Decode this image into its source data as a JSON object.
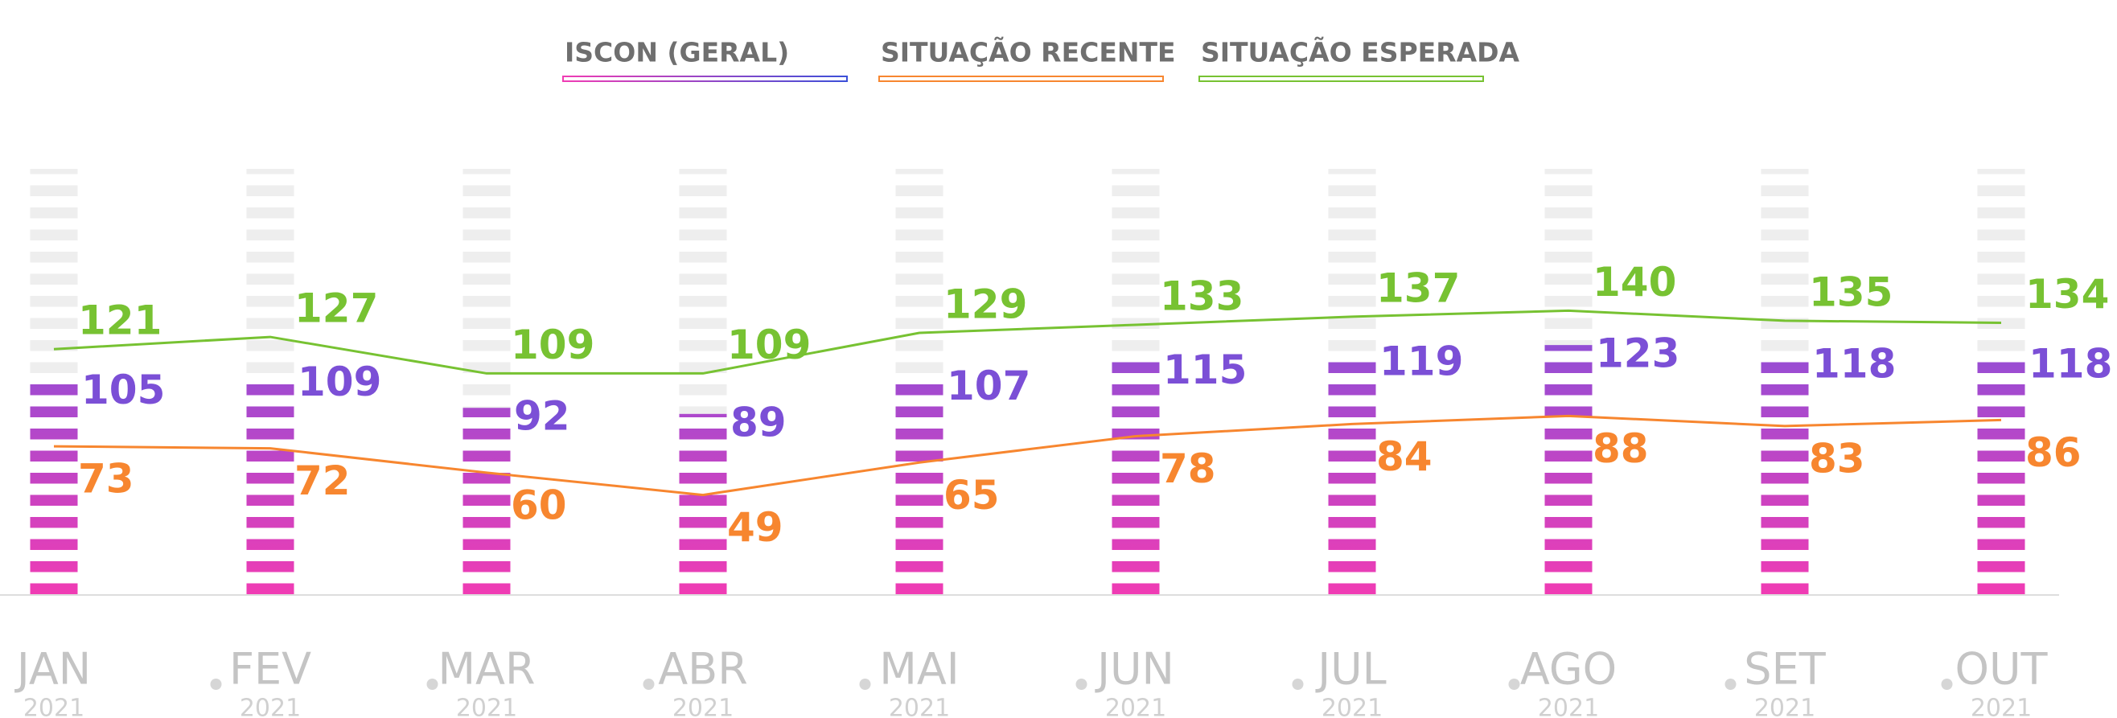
{
  "chart_data": {
    "type": "bar-line",
    "categories": [
      "JAN",
      "FEV",
      "MAR",
      "ABR",
      "MAI",
      "JUN",
      "JUL",
      "AGO",
      "SET",
      "OUT"
    ],
    "years": [
      "2021",
      "2021",
      "2021",
      "2021",
      "2021",
      "2021",
      "2021",
      "2021",
      "2021",
      "2021"
    ],
    "ylim": [
      0,
      210
    ],
    "series": [
      {
        "name": "ISCON (GERAL)",
        "color": "#8a4fd8",
        "type": "bar",
        "values": [
          105,
          109,
          92,
          89,
          107,
          115,
          119,
          123,
          118,
          118
        ]
      },
      {
        "name": "SITUAÇÃO RECENTE",
        "color": "#f7862f",
        "type": "line",
        "values": [
          73,
          72,
          60,
          49,
          65,
          78,
          84,
          88,
          83,
          86
        ]
      },
      {
        "name": "SITUAÇÃO ESPERADA",
        "color": "#77c232",
        "type": "line",
        "values": [
          121,
          127,
          109,
          109,
          129,
          133,
          137,
          140,
          135,
          134
        ]
      }
    ]
  }
}
